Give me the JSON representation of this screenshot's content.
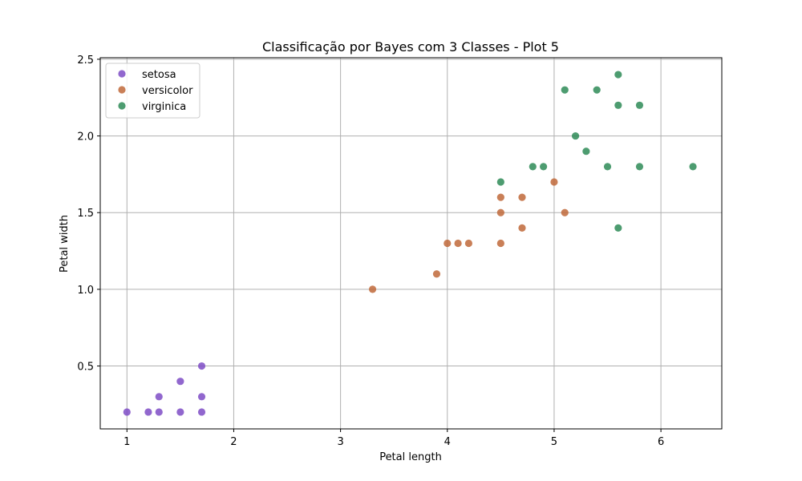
{
  "chart_data": {
    "type": "scatter",
    "title": "Classificação por Bayes com 3 Classes - Plot 5",
    "xlabel": "Petal length",
    "ylabel": "Petal width",
    "xlim": [
      0.75,
      6.57
    ],
    "ylim": [
      0.09,
      2.51
    ],
    "xticks": [
      "1",
      "2",
      "3",
      "4",
      "5",
      "6"
    ],
    "yticks": [
      "0.5",
      "1.0",
      "1.5",
      "2.0",
      "2.5"
    ],
    "grid": true,
    "legend_position": "upper-left",
    "series": [
      {
        "name": "setosa",
        "color": "#7e4cc6",
        "points": [
          [
            1.0,
            0.2
          ],
          [
            1.2,
            0.2
          ],
          [
            1.3,
            0.2
          ],
          [
            1.3,
            0.3
          ],
          [
            1.5,
            0.2
          ],
          [
            1.5,
            0.4
          ],
          [
            1.7,
            0.5
          ],
          [
            1.7,
            0.3
          ],
          [
            1.7,
            0.2
          ]
        ]
      },
      {
        "name": "versicolor",
        "color": "#c0693a",
        "points": [
          [
            3.3,
            1.0
          ],
          [
            3.9,
            1.1
          ],
          [
            4.0,
            1.3
          ],
          [
            4.1,
            1.3
          ],
          [
            4.2,
            1.3
          ],
          [
            4.5,
            1.3
          ],
          [
            4.5,
            1.5
          ],
          [
            4.5,
            1.6
          ],
          [
            4.7,
            1.6
          ],
          [
            4.7,
            1.4
          ],
          [
            5.0,
            1.7
          ],
          [
            5.1,
            1.5
          ]
        ]
      },
      {
        "name": "virginica",
        "color": "#2e8b57",
        "points": [
          [
            4.5,
            1.7
          ],
          [
            4.8,
            1.8
          ],
          [
            4.9,
            1.8
          ],
          [
            5.1,
            2.3
          ],
          [
            5.2,
            2.0
          ],
          [
            5.3,
            1.9
          ],
          [
            5.4,
            2.3
          ],
          [
            5.5,
            1.8
          ],
          [
            5.6,
            2.4
          ],
          [
            5.6,
            2.2
          ],
          [
            5.6,
            1.4
          ],
          [
            5.8,
            2.2
          ],
          [
            5.8,
            1.8
          ],
          [
            6.3,
            1.8
          ]
        ]
      }
    ]
  }
}
